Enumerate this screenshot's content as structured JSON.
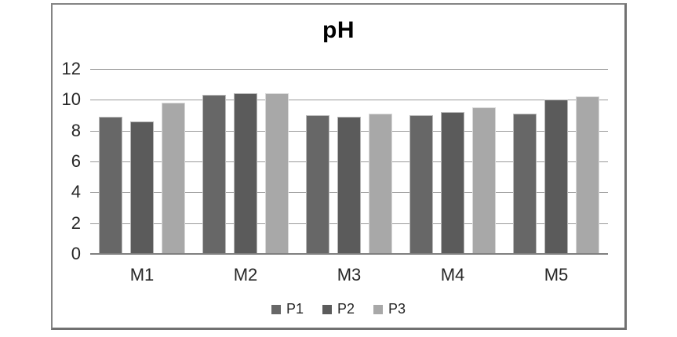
{
  "chart_data": {
    "type": "bar",
    "title": "pH",
    "categories": [
      "M1",
      "M2",
      "M3",
      "M4",
      "M5"
    ],
    "series": [
      {
        "name": "P1",
        "color": "#676767",
        "values": [
          8.9,
          10.3,
          9.0,
          9.0,
          9.1
        ]
      },
      {
        "name": "P2",
        "color": "#5b5b5b",
        "values": [
          8.6,
          10.4,
          8.9,
          9.2,
          10.0
        ]
      },
      {
        "name": "P3",
        "color": "#a8a8a8",
        "values": [
          9.8,
          10.4,
          9.1,
          9.5,
          10.2
        ]
      }
    ],
    "xlabel": "",
    "ylabel": "",
    "ylim": [
      0,
      12
    ],
    "yticks": [
      0,
      2,
      4,
      6,
      8,
      10,
      12
    ],
    "grid": true,
    "legend_position": "bottom",
    "colors": {
      "gridline": "#9a9a9a",
      "axis_line": "#7f7f7f",
      "frame_border": "#848484",
      "text": "#262626",
      "background": "#ffffff"
    }
  }
}
